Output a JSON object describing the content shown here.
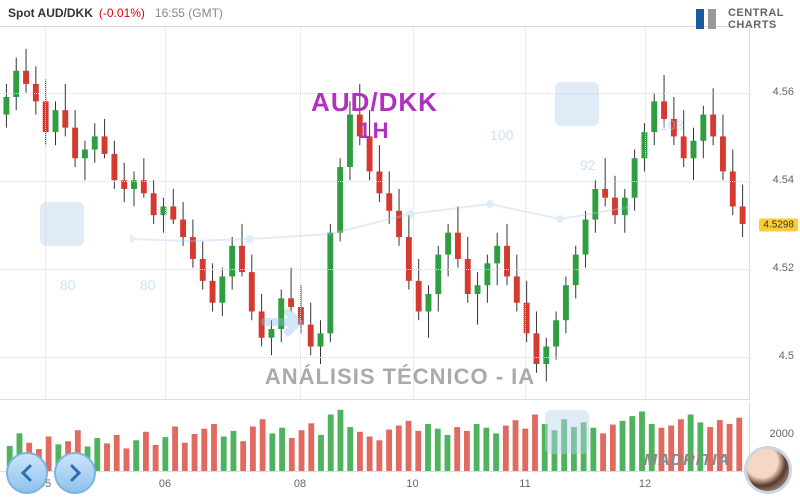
{
  "header": {
    "symbol": "Spot AUD/DKK",
    "change": "(-0.01%)",
    "time": "16:55 (GMT)"
  },
  "logo": {
    "line1": "CENTRAL",
    "line2": "CHARTS"
  },
  "center": {
    "pair": "AUD/DKK",
    "tf": "1H"
  },
  "analysis_label": "ANÁLISIS TÉCNICO - IA",
  "brand": "MADRITIA",
  "watermark_vals": [
    "80",
    "80",
    "100",
    "92",
    "103"
  ],
  "chart": {
    "ylim": [
      4.49,
      4.575
    ],
    "yticks": [
      4.5,
      4.52,
      4.54,
      4.56
    ],
    "cursor": 4.5298,
    "xticks": [
      {
        "p": 0.06,
        "l": "05"
      },
      {
        "p": 0.22,
        "l": "06"
      },
      {
        "p": 0.4,
        "l": "08"
      },
      {
        "p": 0.55,
        "l": "10"
      },
      {
        "p": 0.7,
        "l": "11"
      },
      {
        "p": 0.86,
        "l": "12"
      }
    ],
    "bg": "#ffffff",
    "grid": "#e0e0e0",
    "up_color": "#2e9e3f",
    "down_color": "#d43a2f",
    "wick": "#333333",
    "candles": [
      [
        4.555,
        4.562,
        4.552,
        4.559
      ],
      [
        4.559,
        4.568,
        4.556,
        4.565
      ],
      [
        4.565,
        4.57,
        4.56,
        4.562
      ],
      [
        4.562,
        4.566,
        4.555,
        4.558
      ],
      [
        4.558,
        4.563,
        4.548,
        4.551
      ],
      [
        4.551,
        4.558,
        4.548,
        4.556
      ],
      [
        4.556,
        4.562,
        4.55,
        4.552
      ],
      [
        4.552,
        4.556,
        4.543,
        4.545
      ],
      [
        4.545,
        4.549,
        4.54,
        4.547
      ],
      [
        4.547,
        4.553,
        4.544,
        4.55
      ],
      [
        4.55,
        4.554,
        4.545,
        4.546
      ],
      [
        4.546,
        4.549,
        4.538,
        4.54
      ],
      [
        4.54,
        4.544,
        4.535,
        4.538
      ],
      [
        4.538,
        4.542,
        4.534,
        4.54
      ],
      [
        4.54,
        4.545,
        4.536,
        4.537
      ],
      [
        4.537,
        4.54,
        4.53,
        4.532
      ],
      [
        4.532,
        4.536,
        4.528,
        4.534
      ],
      [
        4.534,
        4.538,
        4.53,
        4.531
      ],
      [
        4.531,
        4.535,
        4.525,
        4.527
      ],
      [
        4.527,
        4.531,
        4.52,
        4.522
      ],
      [
        4.522,
        4.526,
        4.515,
        4.517
      ],
      [
        4.517,
        4.521,
        4.51,
        4.512
      ],
      [
        4.512,
        4.52,
        4.509,
        4.518
      ],
      [
        4.518,
        4.527,
        4.515,
        4.525
      ],
      [
        4.525,
        4.53,
        4.518,
        4.519
      ],
      [
        4.519,
        4.523,
        4.508,
        4.51
      ],
      [
        4.51,
        4.514,
        4.502,
        4.504
      ],
      [
        4.504,
        4.508,
        4.5,
        4.506
      ],
      [
        4.506,
        4.515,
        4.503,
        4.513
      ],
      [
        4.513,
        4.52,
        4.51,
        4.511
      ],
      [
        4.511,
        4.516,
        4.505,
        4.507
      ],
      [
        4.507,
        4.512,
        4.5,
        4.502
      ],
      [
        4.502,
        4.508,
        4.498,
        4.505
      ],
      [
        4.505,
        4.53,
        4.503,
        4.528
      ],
      [
        4.528,
        4.545,
        4.526,
        4.543
      ],
      [
        4.543,
        4.558,
        4.54,
        4.555
      ],
      [
        4.555,
        4.562,
        4.548,
        4.55
      ],
      [
        4.55,
        4.556,
        4.54,
        4.542
      ],
      [
        4.542,
        4.548,
        4.535,
        4.537
      ],
      [
        4.537,
        4.542,
        4.53,
        4.533
      ],
      [
        4.533,
        4.538,
        4.525,
        4.527
      ],
      [
        4.527,
        4.532,
        4.515,
        4.517
      ],
      [
        4.517,
        4.522,
        4.508,
        4.51
      ],
      [
        4.51,
        4.516,
        4.504,
        4.514
      ],
      [
        4.514,
        4.525,
        4.51,
        4.523
      ],
      [
        4.523,
        4.53,
        4.518,
        4.528
      ],
      [
        4.528,
        4.534,
        4.52,
        4.522
      ],
      [
        4.522,
        4.527,
        4.512,
        4.514
      ],
      [
        4.514,
        4.519,
        4.507,
        4.516
      ],
      [
        4.516,
        4.523,
        4.512,
        4.521
      ],
      [
        4.521,
        4.528,
        4.516,
        4.525
      ],
      [
        4.525,
        4.53,
        4.516,
        4.518
      ],
      [
        4.518,
        4.523,
        4.51,
        4.512
      ],
      [
        4.512,
        4.517,
        4.503,
        4.505
      ],
      [
        4.505,
        4.51,
        4.496,
        4.498
      ],
      [
        4.498,
        4.504,
        4.494,
        4.502
      ],
      [
        4.502,
        4.51,
        4.499,
        4.508
      ],
      [
        4.508,
        4.518,
        4.505,
        4.516
      ],
      [
        4.516,
        4.525,
        4.513,
        4.523
      ],
      [
        4.523,
        4.533,
        4.52,
        4.531
      ],
      [
        4.531,
        4.54,
        4.528,
        4.538
      ],
      [
        4.538,
        4.545,
        4.534,
        4.536
      ],
      [
        4.536,
        4.541,
        4.53,
        4.532
      ],
      [
        4.532,
        4.538,
        4.528,
        4.536
      ],
      [
        4.536,
        4.547,
        4.533,
        4.545
      ],
      [
        4.545,
        4.553,
        4.542,
        4.551
      ],
      [
        4.551,
        4.56,
        4.548,
        4.558
      ],
      [
        4.558,
        4.564,
        4.552,
        4.554
      ],
      [
        4.554,
        4.559,
        4.548,
        4.55
      ],
      [
        4.55,
        4.556,
        4.543,
        4.545
      ],
      [
        4.545,
        4.552,
        4.54,
        4.549
      ],
      [
        4.549,
        4.557,
        4.545,
        4.555
      ],
      [
        4.555,
        4.561,
        4.548,
        4.55
      ],
      [
        4.55,
        4.555,
        4.54,
        4.542
      ],
      [
        4.542,
        4.547,
        4.532,
        4.534
      ],
      [
        4.534,
        4.539,
        4.527,
        4.53
      ]
    ]
  },
  "volume": {
    "ymax": 2200,
    "ytick": 2000,
    "up_color": "#4fb35e",
    "down_color": "#e06a5f",
    "bars": [
      800,
      1200,
      900,
      700,
      1100,
      850,
      950,
      1300,
      780,
      1050,
      880,
      1150,
      720,
      980,
      1250,
      830,
      1080,
      1420,
      900,
      1180,
      1350,
      1500,
      1100,
      1280,
      950,
      1420,
      1650,
      1200,
      1380,
      1050,
      1300,
      1520,
      1150,
      1800,
      1950,
      1400,
      1250,
      1100,
      980,
      1320,
      1450,
      1600,
      1280,
      1500,
      1350,
      1150,
      1400,
      1280,
      1500,
      1380,
      1200,
      1450,
      1620,
      1350,
      1800,
      1500,
      1300,
      1650,
      1400,
      1550,
      1380,
      1200,
      1480,
      1600,
      1750,
      1900,
      1500,
      1380,
      1450,
      1650,
      1800,
      1550,
      1400,
      1620,
      1500,
      1700
    ]
  }
}
